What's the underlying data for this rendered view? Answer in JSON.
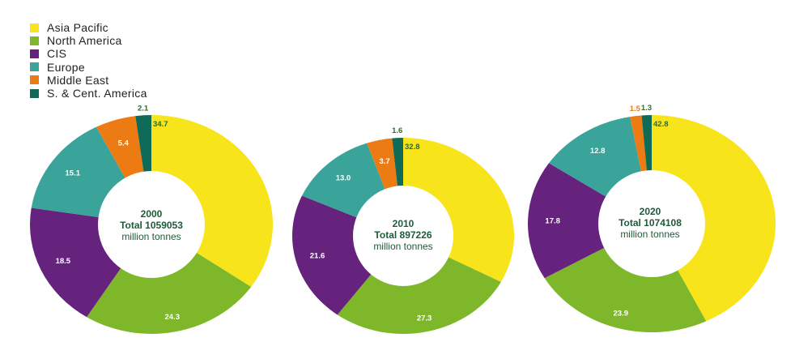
{
  "chart_data": {
    "type": "pie",
    "legend_position": "top-left",
    "categories": [
      "Asia Pacific",
      "North America",
      "CIS",
      "Europe",
      "Middle East",
      "S. & Cent. America"
    ],
    "colors": [
      "#f7e41a",
      "#7eb72a",
      "#66237e",
      "#3aa39a",
      "#ec7b14",
      "#0f6b58"
    ],
    "label_colors": [
      "#2c6b2f",
      "#ffffff",
      "#ffffff",
      "#ffffff",
      "#ffffff",
      "#2c6b2f"
    ],
    "charts": [
      {
        "year": "2000",
        "total_label": "Total 1059053",
        "unit": "million tonnes",
        "values": [
          34.7,
          24.3,
          18.5,
          15.1,
          5.4,
          2.1
        ],
        "labels": [
          "34.7",
          "24.3",
          "18.5",
          "15.1",
          "5.4",
          "2.1"
        ]
      },
      {
        "year": "2010",
        "total_label": "Total 897226",
        "unit": "million tonnes",
        "values": [
          32.8,
          27.3,
          21.6,
          13.0,
          3.7,
          1.6
        ],
        "labels": [
          "32.8",
          "27.3",
          "21.6",
          "13.0",
          "3.7",
          "1.6"
        ]
      },
      {
        "year": "2020",
        "total_label": "Total 1074108",
        "unit": "million tonnes",
        "values": [
          42.8,
          23.9,
          17.8,
          12.8,
          1.5,
          1.3
        ],
        "labels": [
          "42.8",
          "23.9",
          "17.8",
          "12.8",
          "1.5",
          "1.3"
        ]
      }
    ]
  }
}
